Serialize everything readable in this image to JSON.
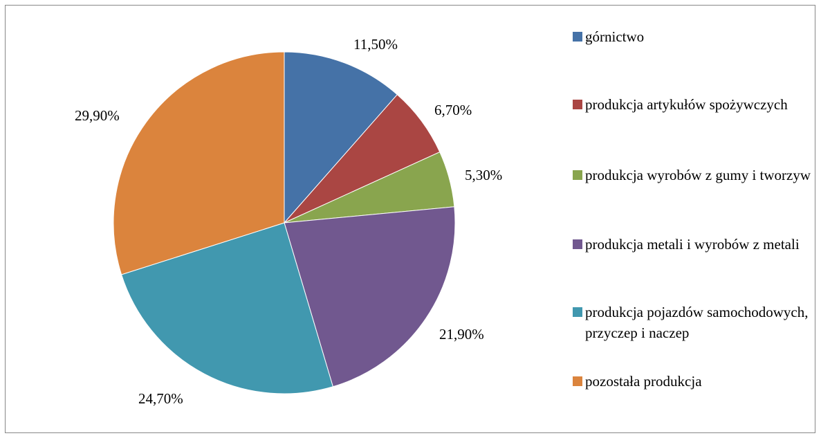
{
  "chart_data": {
    "type": "pie",
    "title": "",
    "legend_position": "right",
    "slices": [
      {
        "label": "górnictwo",
        "value": 11.5,
        "value_label": "11,50%",
        "color": "#4572A7"
      },
      {
        "label": "produkcja artykułów spożywczych",
        "value": 6.7,
        "value_label": "6,70%",
        "color": "#AA4643"
      },
      {
        "label": "produkcja wyrobów z gumy i tworzyw",
        "value": 5.3,
        "value_label": "5,30%",
        "color": "#89A54E"
      },
      {
        "label": "produkcja metali i wyrobów z metali",
        "value": 21.9,
        "value_label": "21,90%",
        "color": "#71588F"
      },
      {
        "label": "produkcja pojazdów samochodowych, przyczep i naczep",
        "value": 24.7,
        "value_label": "24,70%",
        "color": "#4198AF"
      },
      {
        "label": "pozostała produkcja",
        "value": 29.9,
        "value_label": "29,90%",
        "color": "#DB843D"
      }
    ]
  }
}
